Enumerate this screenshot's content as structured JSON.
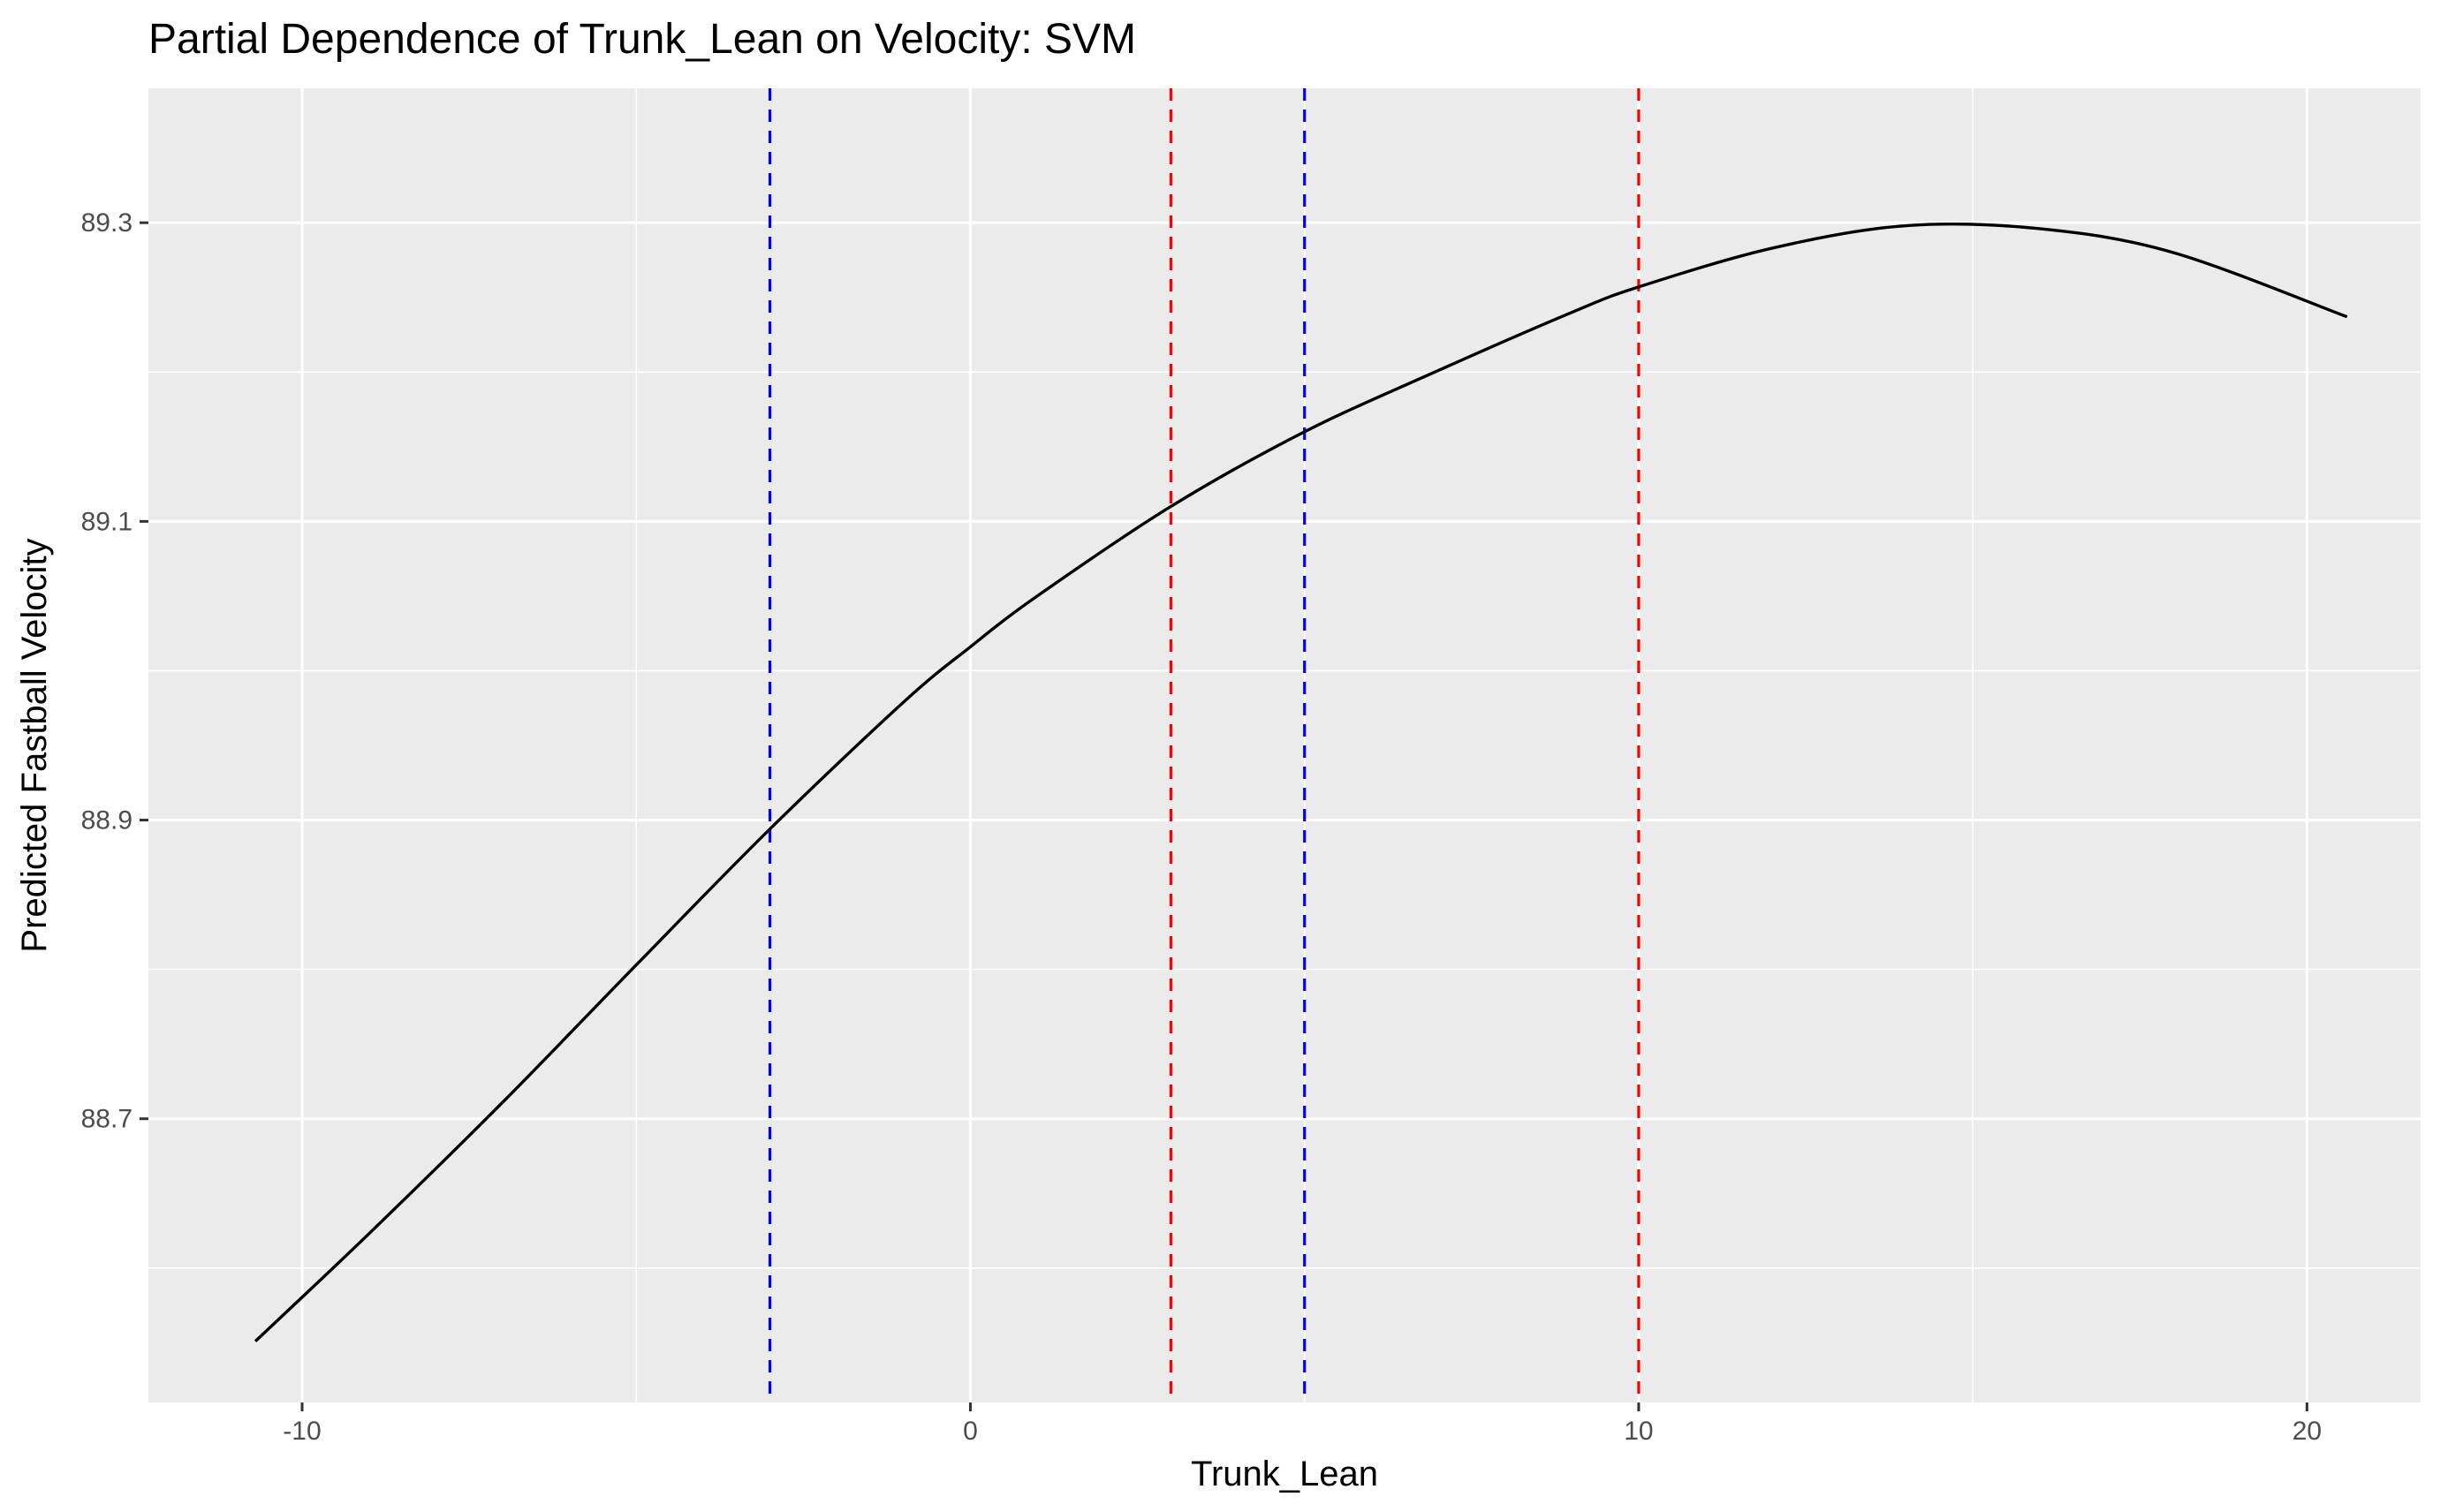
{
  "chart_data": {
    "type": "line",
    "title": "Partial Dependence of Trunk_Lean on Velocity: SVM",
    "xlabel": "Trunk_Lean",
    "ylabel": "Predicted Fastball Velocity",
    "xlim": [
      -12.3,
      21.7
    ],
    "ylim": [
      88.51,
      89.39
    ],
    "x_ticks": [
      -10,
      0,
      10,
      20
    ],
    "x_tick_labels": [
      "-10",
      "0",
      "10",
      "20"
    ],
    "y_ticks": [
      88.7,
      88.9,
      89.1,
      89.3
    ],
    "y_tick_labels": [
      "88.7",
      "88.9",
      "89.1",
      "89.3"
    ],
    "grid": true,
    "background": "#ebebeb",
    "series": [
      {
        "color": "#000000",
        "x": [
          -10.7,
          -9,
          -7,
          -5,
          -3,
          -1,
          0,
          1,
          3,
          5,
          7,
          9,
          10,
          12,
          14,
          16,
          18,
          20.6
        ],
        "y": [
          88.551,
          88.623,
          88.711,
          88.803,
          88.894,
          88.979,
          89.016,
          89.05,
          89.11,
          89.16,
          89.201,
          89.24,
          89.257,
          89.283,
          89.298,
          89.296,
          89.28,
          89.237
        ]
      }
    ],
    "vlines": [
      {
        "x": -3.0,
        "color": "#0000ff",
        "style": "dashed"
      },
      {
        "x": 3.0,
        "color": "#ff0000",
        "style": "dashed"
      },
      {
        "x": 5.0,
        "color": "#0000ff",
        "style": "dashed"
      },
      {
        "x": 10.0,
        "color": "#ff0000",
        "style": "dashed"
      }
    ]
  }
}
